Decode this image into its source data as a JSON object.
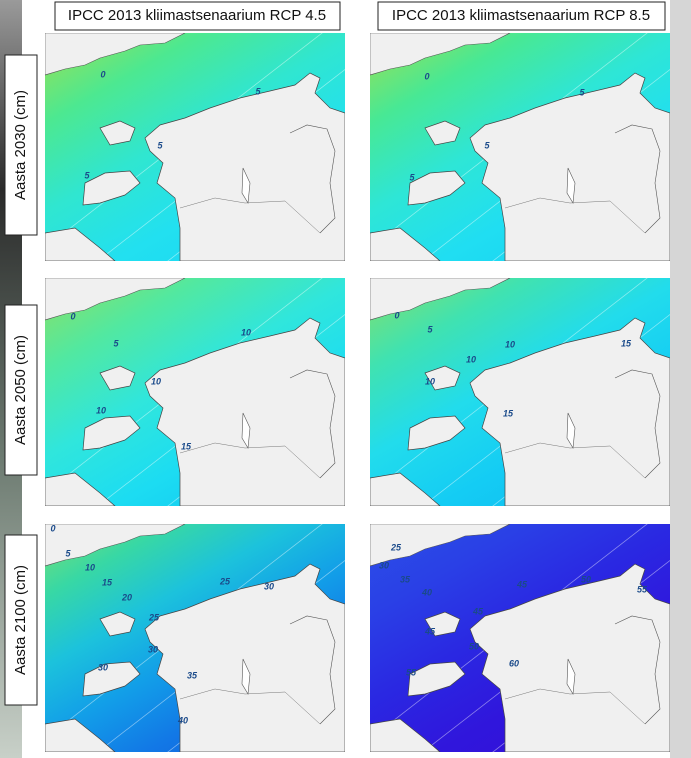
{
  "columns": [
    "IPCC 2013 kliimastsenaarium RCP 4.5",
    "IPCC 2013 kliimastsenaarium RCP 8.5"
  ],
  "rows": [
    {
      "label": "Aasta 2030 (cm)",
      "maps": [
        {
          "contours": [
            0,
            5,
            5,
            5
          ]
        },
        {
          "contours": [
            0,
            5,
            5,
            5
          ]
        }
      ]
    },
    {
      "label": "Aasta 2050 (cm)",
      "maps": [
        {
          "contours": [
            0,
            5,
            10,
            10,
            10,
            15
          ]
        },
        {
          "contours": [
            0,
            5,
            10,
            10,
            10,
            15,
            15
          ]
        }
      ]
    },
    {
      "label": "Aasta 2100 (cm)",
      "maps": [
        {
          "contours": [
            0,
            5,
            10,
            15,
            20,
            25,
            25,
            30,
            30,
            30,
            35,
            40
          ]
        },
        {
          "contours": [
            25,
            30,
            35,
            40,
            45,
            45,
            45,
            50,
            50,
            55,
            55,
            60
          ]
        }
      ]
    }
  ]
}
